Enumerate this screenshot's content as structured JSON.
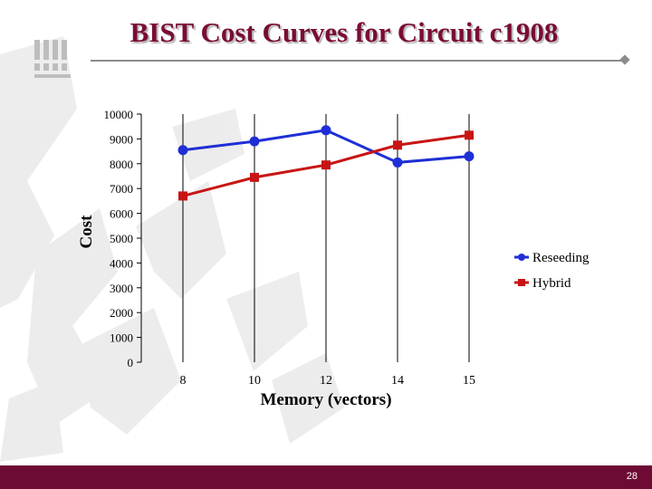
{
  "slide": {
    "title": "BIST Cost Curves for Circuit c1908",
    "page_number": "28"
  },
  "colors": {
    "title": "#7a0c36",
    "footer": "#6e0b34",
    "reseeding": "#1f2fd6",
    "hybrid": "#c81414"
  },
  "chart_data": {
    "type": "line",
    "title": "",
    "xlabel": "Memory (vectors)",
    "ylabel": "Cost",
    "categories": [
      "8",
      "10",
      "12",
      "14",
      "15"
    ],
    "ylim": [
      0,
      10000
    ],
    "yticks": [
      0,
      1000,
      2000,
      3000,
      4000,
      5000,
      6000,
      7000,
      8000,
      9000,
      10000
    ],
    "grid": "vertical lines at categories",
    "legend_position": "right",
    "series": [
      {
        "name": "Reseeding",
        "marker": "circle",
        "color": "#1f2fd6",
        "values": [
          8550,
          8900,
          9350,
          8050,
          8300
        ]
      },
      {
        "name": "Hybrid",
        "marker": "square",
        "color": "#c81414",
        "values": [
          6700,
          7450,
          7950,
          8750,
          9150
        ]
      }
    ]
  }
}
